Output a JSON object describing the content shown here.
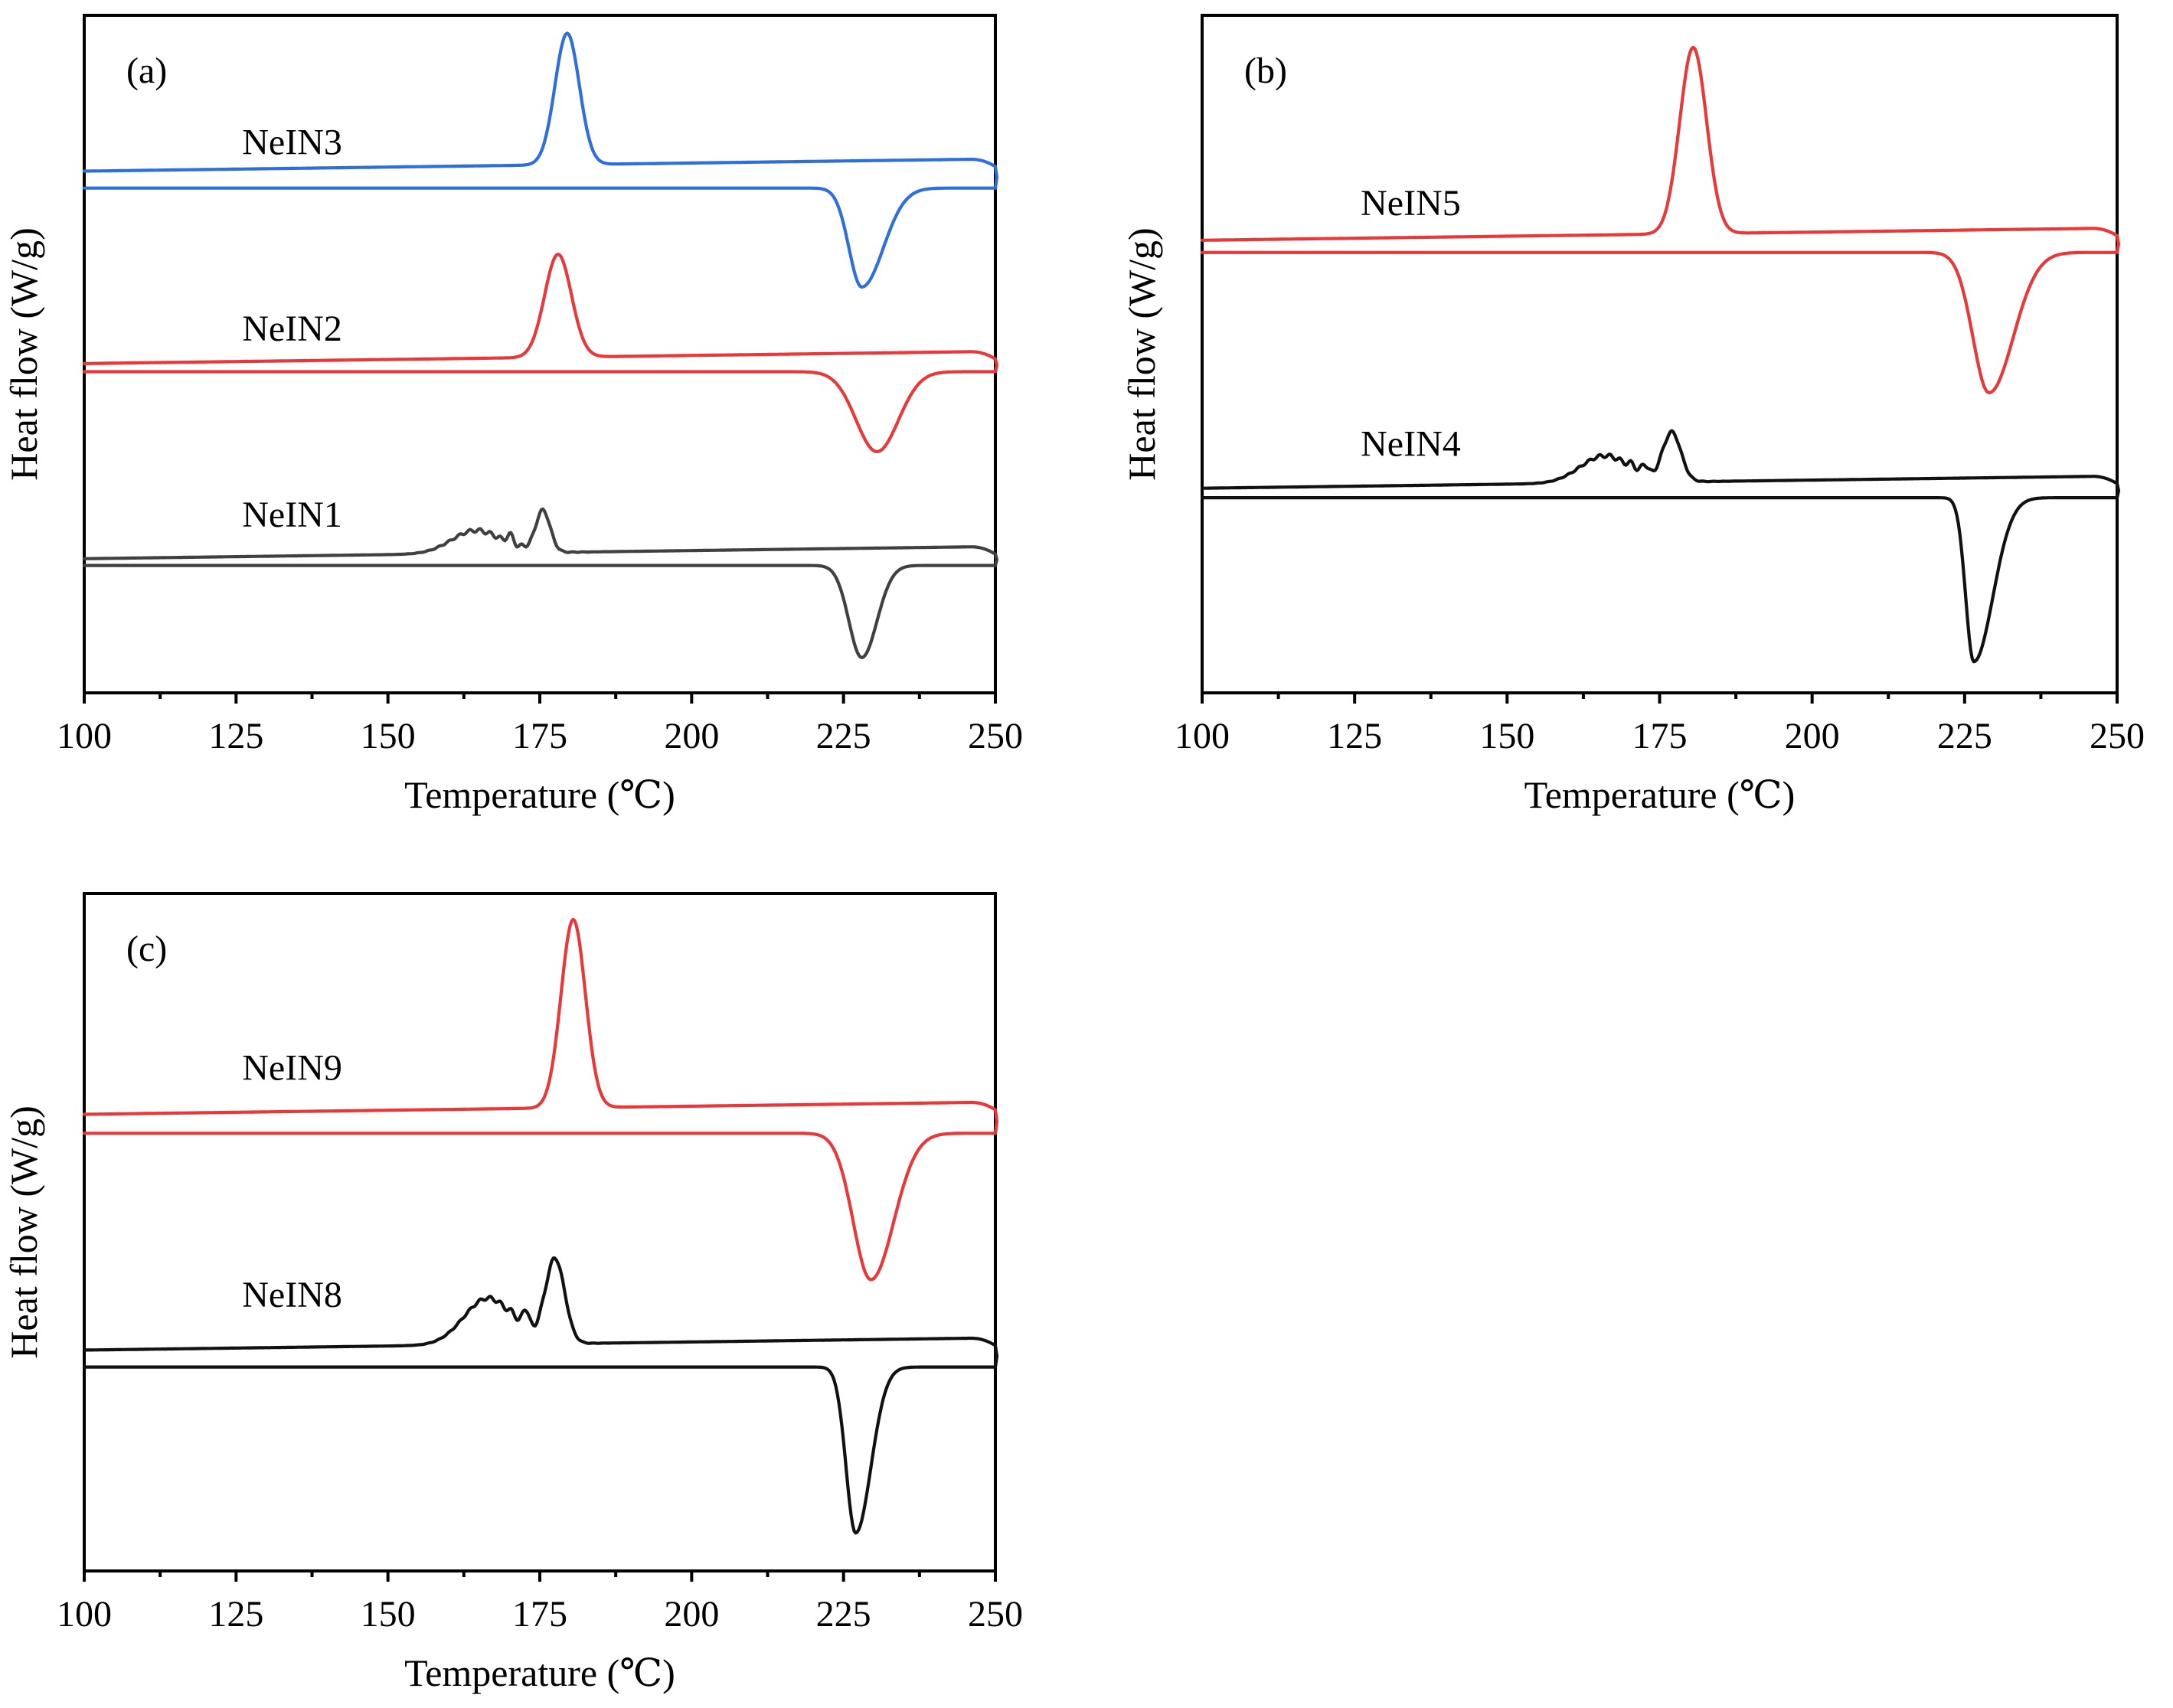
{
  "chart_data": [
    {
      "type": "line",
      "panel_label": "(a)",
      "xlabel": "Temperature (℃)",
      "ylabel": "Heat flow (W/g)",
      "xlim": [
        100,
        250
      ],
      "xticks": [
        100,
        125,
        150,
        175,
        200,
        225,
        250
      ],
      "ylim": [
        0,
        100
      ],
      "y_ticks_shown": false,
      "series": [
        {
          "name": "NeIN3",
          "color": "#2f6fdc",
          "label_x": 126,
          "label_y": 79.5,
          "baseline": 77,
          "offset": 2.5,
          "cryst_peak_x": 179.5,
          "cryst_peak_h": 19.4,
          "cryst_width": 2.0,
          "melt_peak_x": 228,
          "melt_depth": 14.6,
          "melt_onset": 224,
          "melt_end": 236.5,
          "noise": false
        },
        {
          "name": "NeIN2",
          "color": "#e8383a",
          "label_x": 126,
          "label_y": 52,
          "baseline": 48.6,
          "offset": 1.2,
          "cryst_peak_x": 178,
          "cryst_peak_h": 15.2,
          "cryst_width": 2.2,
          "melt_peak_x": 230.5,
          "melt_depth": 11.8,
          "melt_onset": 224,
          "melt_end": 239,
          "noise": false
        },
        {
          "name": "NeIN1",
          "color": "#404040",
          "label_x": 126,
          "label_y": 24.5,
          "baseline": 19.8,
          "offset": 1.0,
          "cryst_peak_x": 175.5,
          "cryst_peak_h": 6.2,
          "cryst_width": 1.2,
          "melt_peak_x": 228,
          "melt_depth": 13.6,
          "melt_onset": 224,
          "melt_end": 234,
          "noise": true
        }
      ]
    },
    {
      "type": "line",
      "panel_label": "(b)",
      "xlabel": "Temperature (℃)",
      "ylabel": "Heat flow (W/g)",
      "xlim": [
        100,
        250
      ],
      "xticks": [
        100,
        125,
        150,
        175,
        200,
        225,
        250
      ],
      "ylim": [
        0,
        100
      ],
      "y_ticks_shown": false,
      "series": [
        {
          "name": "NeIN5",
          "color": "#e8383a",
          "label_x": 126,
          "label_y": 70.5,
          "baseline": 66.8,
          "offset": 1.8,
          "cryst_peak_x": 180.5,
          "cryst_peak_h": 27.5,
          "cryst_width": 2.2,
          "melt_peak_x": 229,
          "melt_depth": 20.7,
          "melt_onset": 224,
          "melt_end": 238.5,
          "noise": false
        },
        {
          "name": "NeIN4",
          "color": "#111111",
          "label_x": 126,
          "label_y": 35,
          "baseline": 30.2,
          "offset": 1.4,
          "cryst_peak_x": 177,
          "cryst_peak_h": 7.3,
          "cryst_width": 1.5,
          "melt_peak_x": 226.5,
          "melt_depth": 24.2,
          "melt_onset": 224,
          "melt_end": 234,
          "noise": true
        }
      ]
    },
    {
      "type": "line",
      "panel_label": "(c)",
      "xlabel": "Temperature (℃)",
      "ylabel": "Heat flow (W/g)",
      "xlim": [
        100,
        250
      ],
      "xticks": [
        100,
        125,
        150,
        175,
        200,
        225,
        250
      ],
      "ylim": [
        0,
        100
      ],
      "y_ticks_shown": false,
      "series": [
        {
          "name": "NeIN9",
          "color": "#e8383a",
          "label_x": 126,
          "label_y": 72.5,
          "baseline": 67.4,
          "offset": 2.8,
          "cryst_peak_x": 180.5,
          "cryst_peak_h": 27.8,
          "cryst_width": 2.0,
          "melt_peak_x": 229.5,
          "melt_depth": 21.6,
          "melt_onset": 224,
          "melt_end": 238.5,
          "noise": false
        },
        {
          "name": "NeIN8",
          "color": "#111111",
          "label_x": 126,
          "label_y": 39,
          "baseline": 32.6,
          "offset": 2.5,
          "cryst_peak_x": 177.5,
          "cryst_peak_h": 12.5,
          "cryst_width": 1.6,
          "melt_peak_x": 227,
          "melt_depth": 24.5,
          "melt_onset": 224,
          "melt_end": 233,
          "noise": true
        }
      ]
    }
  ]
}
